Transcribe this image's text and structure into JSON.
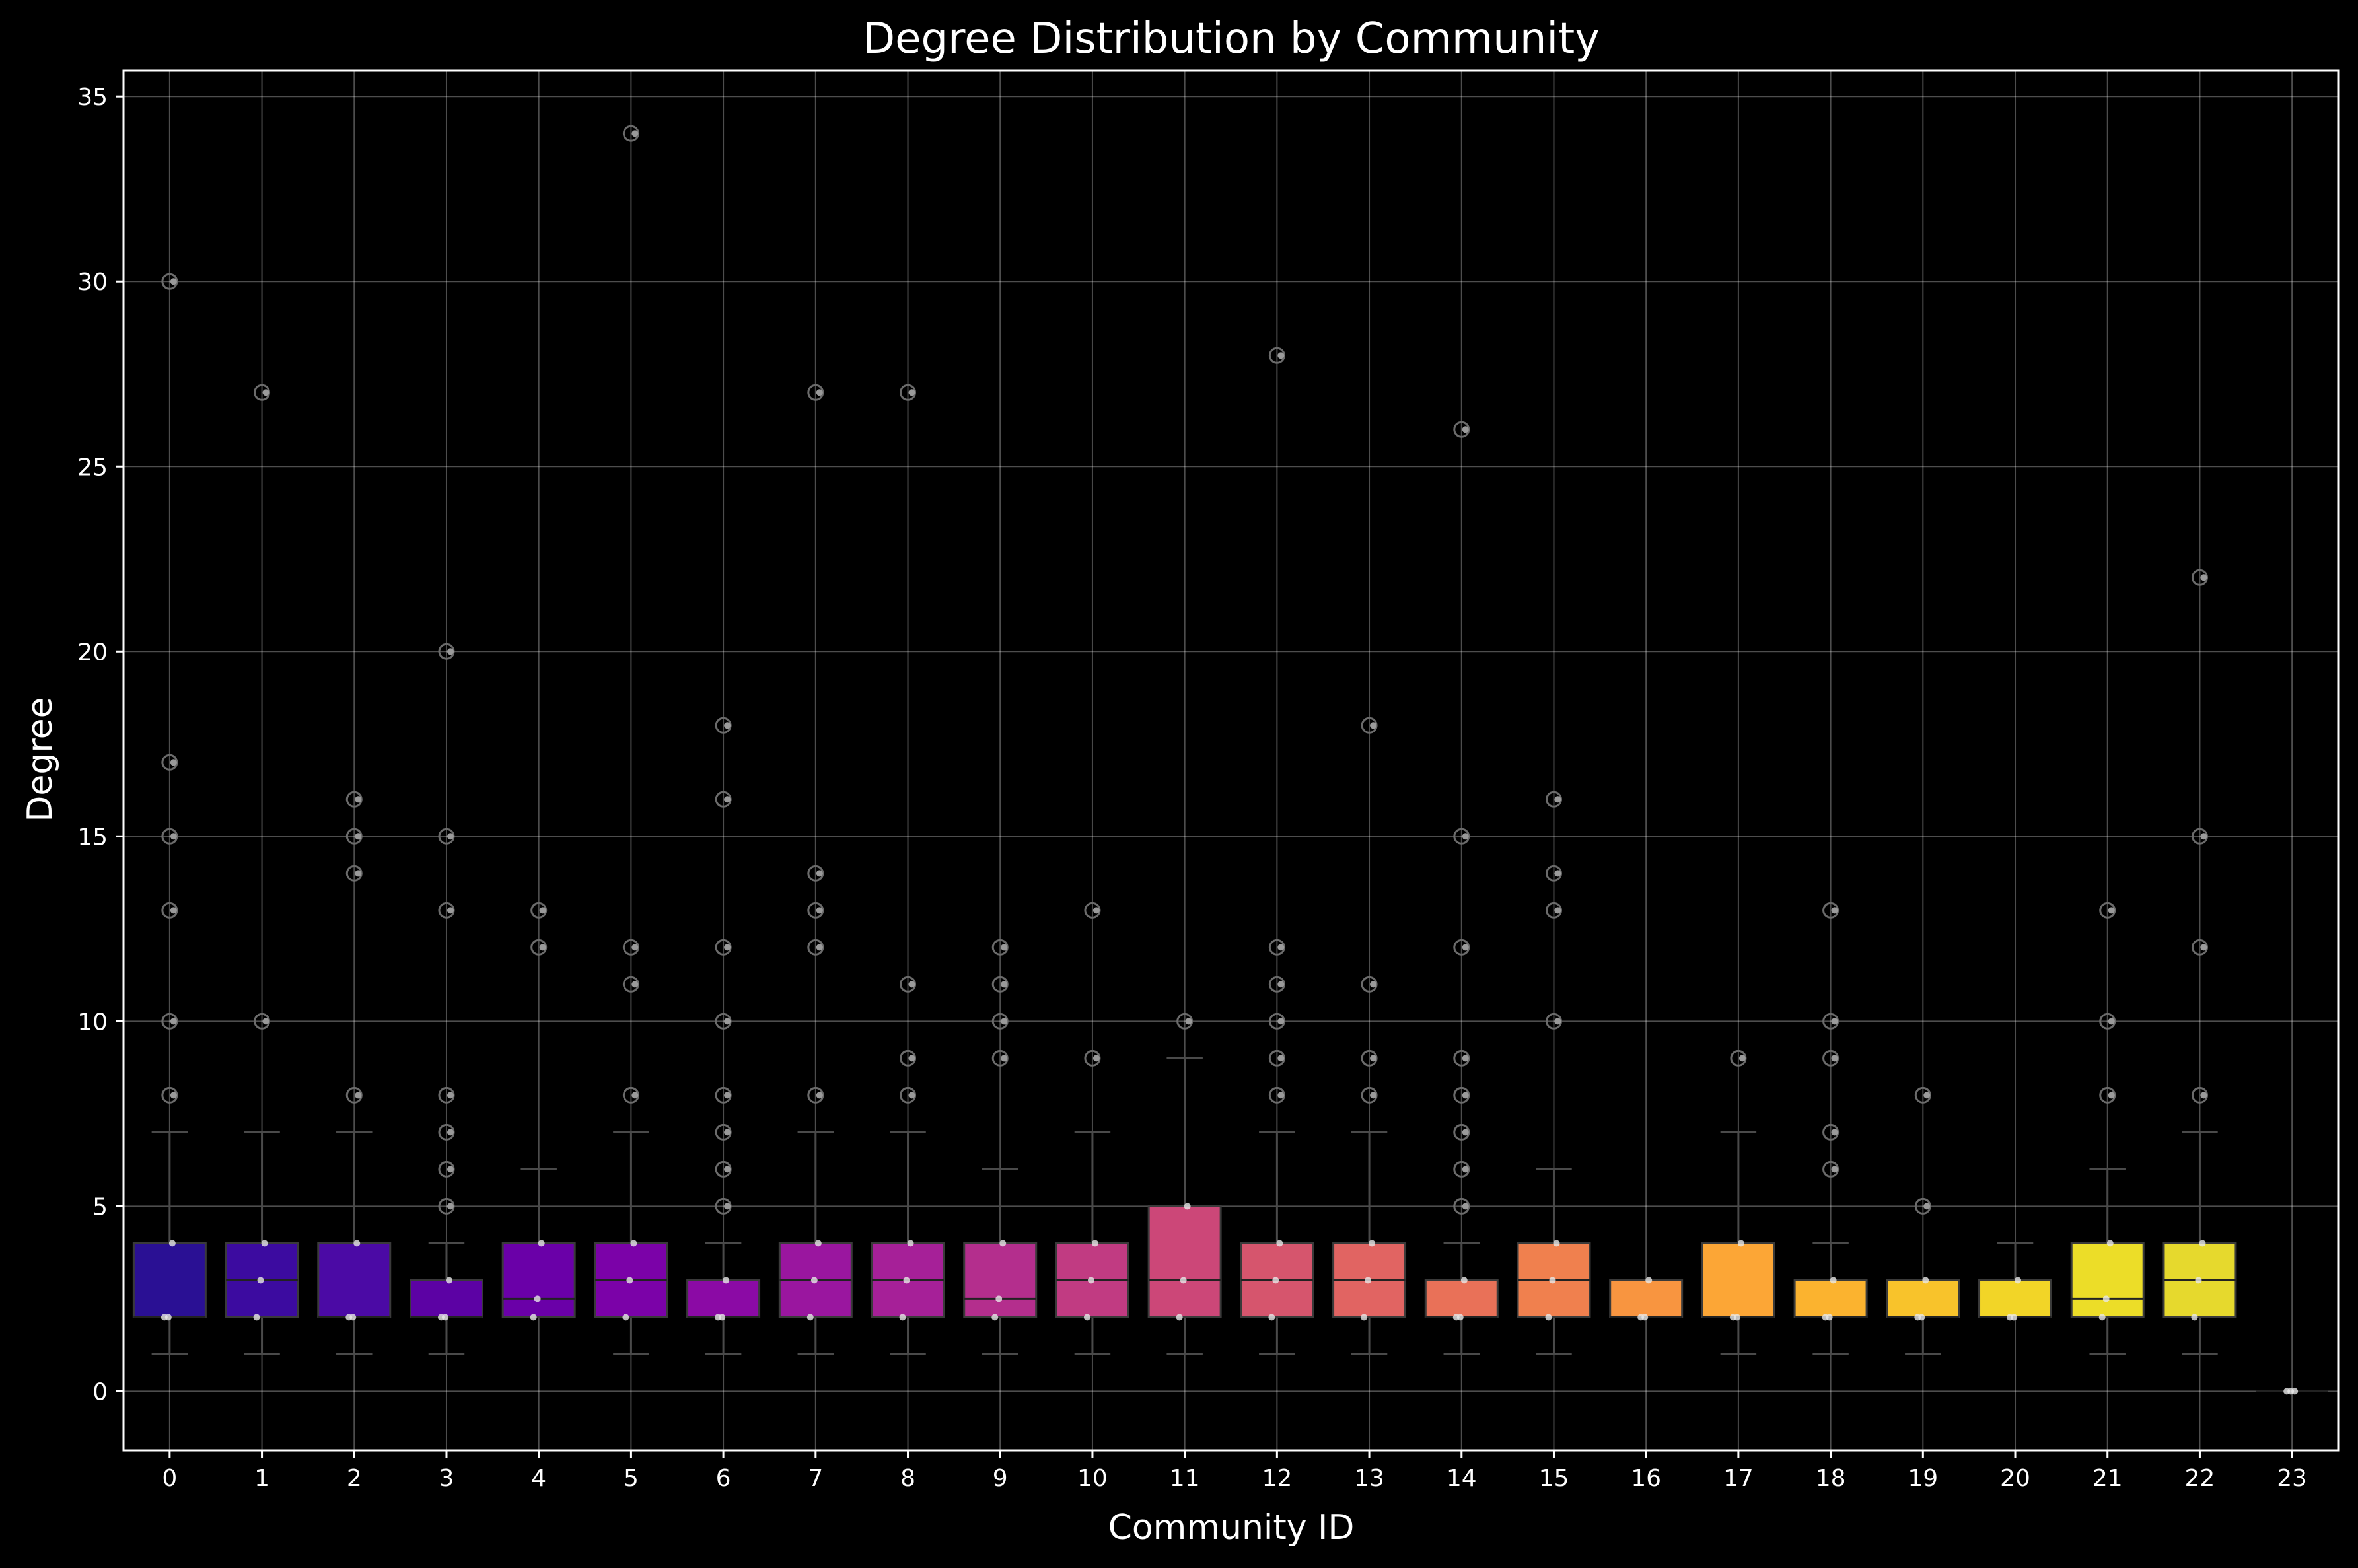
{
  "chart_data": {
    "type": "box",
    "title": "Degree Distribution by Community",
    "xlabel": "Community ID",
    "ylabel": "Degree",
    "ylim": [
      -1.6,
      35.7
    ],
    "yticks": [
      0,
      5,
      10,
      15,
      20,
      25,
      30,
      35
    ],
    "grid": true,
    "colormap": "plasma",
    "categories": [
      "0",
      "1",
      "2",
      "3",
      "4",
      "5",
      "6",
      "7",
      "8",
      "9",
      "10",
      "11",
      "12",
      "13",
      "14",
      "15",
      "16",
      "17",
      "18",
      "19",
      "20",
      "21",
      "22",
      "23"
    ],
    "box_colors": [
      "#2a1094",
      "#3c0ba0",
      "#4b0aa5",
      "#5c02a4",
      "#6a00a8",
      "#7b02a8",
      "#8b0aa5",
      "#9a169f",
      "#a62098",
      "#b42e8d",
      "#c13b82",
      "#cc4778",
      "#d6556d",
      "#e16462",
      "#e97158",
      "#f0804e",
      "#f89540",
      "#fca636",
      "#fbb32f",
      "#f8c32b",
      "#f2d527",
      "#ecdd28",
      "#e6d92d",
      "#f0f921"
    ],
    "boxes": [
      {
        "id": "0",
        "q1": 2,
        "median": 2,
        "q3": 4,
        "whisker_low": 1,
        "whisker_high": 7,
        "outliers": [
          8,
          10,
          13,
          15,
          17,
          30
        ]
      },
      {
        "id": "1",
        "q1": 2,
        "median": 3,
        "q3": 4,
        "whisker_low": 1,
        "whisker_high": 7,
        "outliers": [
          10,
          27
        ]
      },
      {
        "id": "2",
        "q1": 2,
        "median": 2,
        "q3": 4,
        "whisker_low": 1,
        "whisker_high": 7,
        "outliers": [
          8,
          14,
          15,
          16
        ]
      },
      {
        "id": "3",
        "q1": 2,
        "median": 2,
        "q3": 3,
        "whisker_low": 1,
        "whisker_high": 4,
        "outliers": [
          5,
          6,
          7,
          8,
          13,
          15,
          20
        ]
      },
      {
        "id": "4",
        "q1": 2,
        "median": 2.5,
        "q3": 4,
        "whisker_low": 2,
        "whisker_high": 6,
        "outliers": [
          12,
          13
        ]
      },
      {
        "id": "5",
        "q1": 2,
        "median": 3,
        "q3": 4,
        "whisker_low": 1,
        "whisker_high": 7,
        "outliers": [
          8,
          11,
          12,
          34
        ]
      },
      {
        "id": "6",
        "q1": 2,
        "median": 2,
        "q3": 3,
        "whisker_low": 1,
        "whisker_high": 4,
        "outliers": [
          5,
          6,
          7,
          8,
          10,
          12,
          16,
          18
        ]
      },
      {
        "id": "7",
        "q1": 2,
        "median": 3,
        "q3": 4,
        "whisker_low": 1,
        "whisker_high": 7,
        "outliers": [
          8,
          12,
          13,
          14,
          27
        ]
      },
      {
        "id": "8",
        "q1": 2,
        "median": 3,
        "q3": 4,
        "whisker_low": 1,
        "whisker_high": 7,
        "outliers": [
          8,
          9,
          11,
          27
        ]
      },
      {
        "id": "9",
        "q1": 2,
        "median": 2.5,
        "q3": 4,
        "whisker_low": 1,
        "whisker_high": 6,
        "outliers": [
          9,
          10,
          11,
          12
        ]
      },
      {
        "id": "10",
        "q1": 2,
        "median": 3,
        "q3": 4,
        "whisker_low": 1,
        "whisker_high": 7,
        "outliers": [
          9,
          13
        ]
      },
      {
        "id": "11",
        "q1": 2,
        "median": 3,
        "q3": 5,
        "whisker_low": 1,
        "whisker_high": 9,
        "outliers": [
          10
        ]
      },
      {
        "id": "12",
        "q1": 2,
        "median": 3,
        "q3": 4,
        "whisker_low": 1,
        "whisker_high": 7,
        "outliers": [
          8,
          9,
          10,
          11,
          12,
          28
        ]
      },
      {
        "id": "13",
        "q1": 2,
        "median": 3,
        "q3": 4,
        "whisker_low": 1,
        "whisker_high": 7,
        "outliers": [
          8,
          9,
          11,
          18
        ]
      },
      {
        "id": "14",
        "q1": 2,
        "median": 2,
        "q3": 3,
        "whisker_low": 1,
        "whisker_high": 4,
        "outliers": [
          5,
          6,
          7,
          8,
          9,
          12,
          15,
          26
        ]
      },
      {
        "id": "15",
        "q1": 2,
        "median": 3,
        "q3": 4,
        "whisker_low": 1,
        "whisker_high": 6,
        "outliers": [
          10,
          13,
          14,
          16
        ]
      },
      {
        "id": "16",
        "q1": 2,
        "median": 2,
        "q3": 3,
        "whisker_low": 2,
        "whisker_high": 3,
        "outliers": []
      },
      {
        "id": "17",
        "q1": 2,
        "median": 2,
        "q3": 4,
        "whisker_low": 1,
        "whisker_high": 7,
        "outliers": [
          9
        ]
      },
      {
        "id": "18",
        "q1": 2,
        "median": 2,
        "q3": 3,
        "whisker_low": 1,
        "whisker_high": 4,
        "outliers": [
          6,
          7,
          9,
          10,
          13
        ]
      },
      {
        "id": "19",
        "q1": 2,
        "median": 2,
        "q3": 3,
        "whisker_low": 1,
        "whisker_high": 3,
        "outliers": [
          5,
          8
        ]
      },
      {
        "id": "20",
        "q1": 2,
        "median": 2,
        "q3": 3,
        "whisker_low": 2,
        "whisker_high": 4,
        "outliers": []
      },
      {
        "id": "21",
        "q1": 2,
        "median": 2.5,
        "q3": 4,
        "whisker_low": 1,
        "whisker_high": 6,
        "outliers": [
          8,
          10,
          13
        ]
      },
      {
        "id": "22",
        "q1": 2,
        "median": 3,
        "q3": 4,
        "whisker_low": 1,
        "whisker_high": 7,
        "outliers": [
          8,
          12,
          15,
          22
        ]
      },
      {
        "id": "23",
        "q1": 0,
        "median": 0,
        "q3": 0,
        "whisker_low": 0,
        "whisker_high": 0,
        "outliers": []
      }
    ]
  }
}
